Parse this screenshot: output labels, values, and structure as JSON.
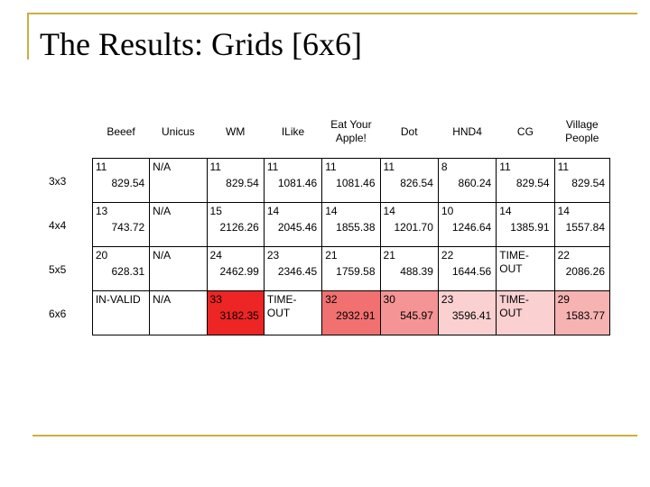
{
  "title": "The Results: Grids [6x6]",
  "colors": {
    "accent_rule": "#c9b040",
    "cell_default": "#ffffff",
    "heat_1": "#ed2525",
    "heat_2": "#f17070",
    "heat_3": "#f49494",
    "heat_4": "#f7b2b2",
    "heat_5": "#fad0d0"
  },
  "columns": [
    "Beeef",
    "Unicus",
    "WM",
    "ILike",
    "Eat Your Apple!",
    "Dot",
    "HND4",
    "CG",
    "Village People"
  ],
  "rows": [
    {
      "label": "3x3",
      "cells": [
        {
          "n": "11",
          "t": "829.54",
          "bg": "#ffffff"
        },
        {
          "w": "N/A",
          "bg": "#ffffff"
        },
        {
          "n": "11",
          "t": "829.54",
          "bg": "#ffffff"
        },
        {
          "n": "11",
          "t": "1081.46",
          "bg": "#ffffff"
        },
        {
          "n": "11",
          "t": "1081.46",
          "bg": "#ffffff"
        },
        {
          "n": "11",
          "t": "826.54",
          "bg": "#ffffff"
        },
        {
          "n": "8",
          "t": "860.24",
          "bg": "#ffffff"
        },
        {
          "n": "11",
          "t": "829.54",
          "bg": "#ffffff"
        },
        {
          "n": "11",
          "t": "829.54",
          "bg": "#ffffff"
        }
      ]
    },
    {
      "label": "4x4",
      "cells": [
        {
          "n": "13",
          "t": "743.72",
          "bg": "#ffffff"
        },
        {
          "w": "N/A",
          "bg": "#ffffff"
        },
        {
          "n": "15",
          "t": "2126.26",
          "bg": "#ffffff"
        },
        {
          "n": "14",
          "t": "2045.46",
          "bg": "#ffffff"
        },
        {
          "n": "14",
          "t": "1855.38",
          "bg": "#ffffff"
        },
        {
          "n": "14",
          "t": "1201.70",
          "bg": "#ffffff"
        },
        {
          "n": "10",
          "t": "1246.64",
          "bg": "#ffffff"
        },
        {
          "n": "14",
          "t": "1385.91",
          "bg": "#ffffff"
        },
        {
          "n": "14",
          "t": "1557.84",
          "bg": "#ffffff"
        }
      ]
    },
    {
      "label": "5x5",
      "cells": [
        {
          "n": "20",
          "t": "628.31",
          "bg": "#ffffff"
        },
        {
          "w": "N/A",
          "bg": "#ffffff"
        },
        {
          "n": "24",
          "t": "2462.99",
          "bg": "#ffffff"
        },
        {
          "n": "23",
          "t": "2346.45",
          "bg": "#ffffff"
        },
        {
          "n": "21",
          "t": "1759.58",
          "bg": "#ffffff"
        },
        {
          "n": "21",
          "t": "488.39",
          "bg": "#ffffff"
        },
        {
          "n": "22",
          "t": "1644.56",
          "bg": "#ffffff"
        },
        {
          "w": "TIME-OUT",
          "bg": "#ffffff"
        },
        {
          "n": "22",
          "t": "2086.26",
          "bg": "#ffffff"
        }
      ]
    },
    {
      "label": "6x6",
      "cells": [
        {
          "w": "IN-VALID",
          "bg": "#ffffff"
        },
        {
          "w": "N/A",
          "bg": "#ffffff"
        },
        {
          "n": "33",
          "t": "3182.35",
          "bg": "#ed2525"
        },
        {
          "w": "TIME-OUT",
          "bg": "#ffffff"
        },
        {
          "n": "32",
          "t": "2932.91",
          "bg": "#f17070"
        },
        {
          "n": "30",
          "t": "545.97",
          "bg": "#f49494"
        },
        {
          "n": "23",
          "t": "3596.41",
          "bg": "#fad0d0"
        },
        {
          "w": "TIME-OUT",
          "bg": "#fad0d0"
        },
        {
          "n": "29",
          "t": "1583.77",
          "bg": "#f7b2b2"
        }
      ]
    }
  ]
}
